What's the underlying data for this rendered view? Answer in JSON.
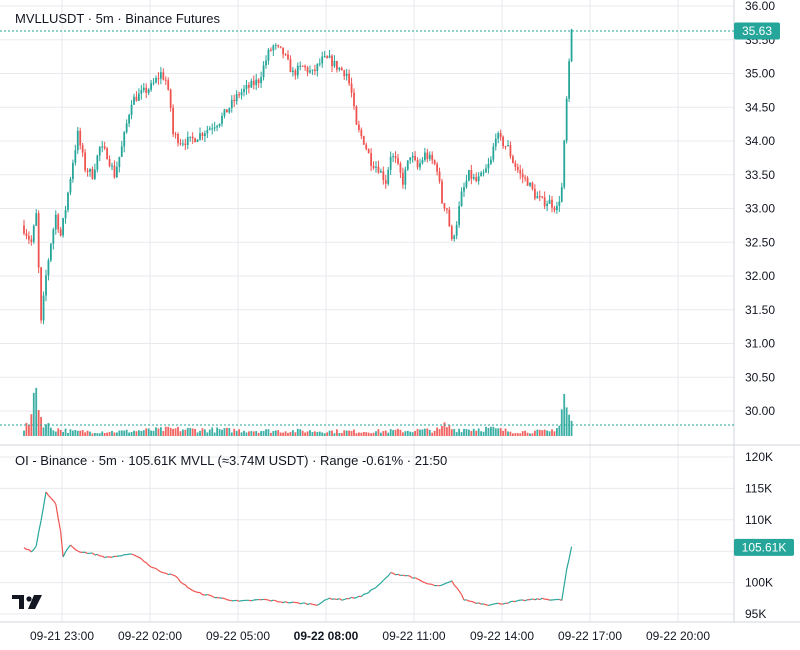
{
  "colors": {
    "up": "#26a69a",
    "down": "#ef5350",
    "grid": "#e8eaee",
    "tag": "#26a69a",
    "text": "#131722"
  },
  "logo": {
    "icon": "tradingview-logo-icon"
  },
  "chart_data": [
    {
      "type": "candlestick",
      "title": "MVLLUSDT · 5m · Binance Futures",
      "ylim": [
        30.0,
        36.0
      ],
      "yticks": [
        "36.00",
        "35.50",
        "35.00",
        "34.50",
        "34.00",
        "33.50",
        "33.00",
        "32.50",
        "32.00",
        "31.50",
        "31.00",
        "30.50",
        "30.00"
      ],
      "last_price": "35.63",
      "anchors": [
        [
          0,
          32.7
        ],
        [
          3,
          32.5
        ],
        [
          5,
          32.9
        ],
        [
          7,
          31.3
        ],
        [
          9,
          32.0
        ],
        [
          11,
          32.5
        ],
        [
          13,
          32.9
        ],
        [
          15,
          32.6
        ],
        [
          17,
          33.0
        ],
        [
          20,
          33.7
        ],
        [
          22,
          34.1
        ],
        [
          25,
          33.6
        ],
        [
          28,
          33.5
        ],
        [
          31,
          33.9
        ],
        [
          34,
          33.8
        ],
        [
          37,
          33.5
        ],
        [
          40,
          33.9
        ],
        [
          44,
          34.6
        ],
        [
          48,
          34.7
        ],
        [
          52,
          34.8
        ],
        [
          56,
          35.0
        ],
        [
          58,
          34.9
        ],
        [
          60,
          34.5
        ],
        [
          61,
          34.1
        ],
        [
          64,
          34.0
        ],
        [
          68,
          34.0
        ],
        [
          72,
          34.1
        ],
        [
          76,
          34.2
        ],
        [
          80,
          34.3
        ],
        [
          84,
          34.5
        ],
        [
          88,
          34.7
        ],
        [
          92,
          34.8
        ],
        [
          96,
          34.9
        ],
        [
          100,
          35.3
        ],
        [
          102,
          35.4
        ],
        [
          106,
          35.3
        ],
        [
          110,
          35.0
        ],
        [
          114,
          35.1
        ],
        [
          118,
          35.0
        ],
        [
          122,
          35.2
        ],
        [
          125,
          35.2
        ],
        [
          128,
          35.1
        ],
        [
          132,
          35.0
        ],
        [
          134,
          34.7
        ],
        [
          136,
          34.2
        ],
        [
          139,
          34.0
        ],
        [
          142,
          33.7
        ],
        [
          145,
          33.6
        ],
        [
          148,
          33.4
        ],
        [
          150,
          33.8
        ],
        [
          152,
          33.7
        ],
        [
          155,
          33.4
        ],
        [
          158,
          33.8
        ],
        [
          161,
          33.6
        ],
        [
          164,
          33.8
        ],
        [
          167,
          33.7
        ],
        [
          169,
          33.6
        ],
        [
          171,
          33.1
        ],
        [
          173,
          33.0
        ],
        [
          175,
          32.5
        ],
        [
          177,
          32.8
        ],
        [
          179,
          33.2
        ],
        [
          182,
          33.5
        ],
        [
          185,
          33.4
        ],
        [
          188,
          33.5
        ],
        [
          191,
          33.7
        ],
        [
          193,
          34.1
        ],
        [
          195,
          34.0
        ],
        [
          198,
          33.9
        ],
        [
          200,
          33.7
        ],
        [
          203,
          33.5
        ],
        [
          206,
          33.4
        ],
        [
          209,
          33.2
        ],
        [
          212,
          33.1
        ],
        [
          215,
          33.1
        ],
        [
          218,
          33.0
        ],
        [
          220,
          33.3
        ],
        [
          222,
          34.6
        ],
        [
          224,
          35.63
        ]
      ],
      "volume": [
        [
          0,
          0.1
        ],
        [
          3,
          0.2
        ],
        [
          4,
          0.55
        ],
        [
          5,
          0.95
        ],
        [
          6,
          0.35
        ],
        [
          7,
          0.25
        ],
        [
          9,
          0.15
        ],
        [
          12,
          0.1
        ],
        [
          20,
          0.06
        ],
        [
          40,
          0.06
        ],
        [
          60,
          0.09
        ],
        [
          100,
          0.07
        ],
        [
          140,
          0.06
        ],
        [
          170,
          0.08
        ],
        [
          172,
          0.14
        ],
        [
          176,
          0.09
        ],
        [
          190,
          0.1
        ],
        [
          200,
          0.06
        ],
        [
          215,
          0.06
        ],
        [
          219,
          0.14
        ],
        [
          221,
          0.55
        ],
        [
          222,
          0.35
        ],
        [
          223,
          0.25
        ],
        [
          224,
          0.2
        ]
      ]
    },
    {
      "type": "line",
      "title": "OI - Binance · 5m · 105.61K MVLL (≈3.74M USDT) · Range -0.61% · 21:50",
      "ylim": [
        95,
        120
      ],
      "yticks": [
        "120K",
        "115K",
        "110K",
        "105K",
        "100K",
        "95K"
      ],
      "last_value": "105.61K",
      "anchors": [
        [
          0,
          105.5
        ],
        [
          3,
          105.0
        ],
        [
          5,
          105.8
        ],
        [
          7,
          110.0
        ],
        [
          9,
          114.5
        ],
        [
          11,
          113.5
        ],
        [
          13,
          112.5
        ],
        [
          15,
          108.0
        ],
        [
          16,
          104.2
        ],
        [
          19,
          106.0
        ],
        [
          22,
          105.0
        ],
        [
          28,
          104.6
        ],
        [
          34,
          104.0
        ],
        [
          40,
          104.3
        ],
        [
          45,
          104.5
        ],
        [
          48,
          103.8
        ],
        [
          52,
          102.5
        ],
        [
          56,
          101.8
        ],
        [
          62,
          101.0
        ],
        [
          65,
          99.8
        ],
        [
          70,
          98.5
        ],
        [
          78,
          97.7
        ],
        [
          88,
          97.0
        ],
        [
          98,
          97.3
        ],
        [
          106,
          96.9
        ],
        [
          114,
          96.7
        ],
        [
          120,
          96.5
        ],
        [
          125,
          97.5
        ],
        [
          130,
          97.3
        ],
        [
          138,
          97.8
        ],
        [
          145,
          99.5
        ],
        [
          150,
          101.5
        ],
        [
          158,
          101.0
        ],
        [
          165,
          99.8
        ],
        [
          170,
          99.4
        ],
        [
          175,
          100.2
        ],
        [
          178,
          98.7
        ],
        [
          180,
          97.3
        ],
        [
          185,
          96.8
        ],
        [
          190,
          96.5
        ],
        [
          196,
          96.7
        ],
        [
          205,
          97.2
        ],
        [
          212,
          97.4
        ],
        [
          220,
          97.2
        ],
        [
          222,
          102.0
        ],
        [
          224,
          105.6
        ]
      ]
    }
  ],
  "x_axis": {
    "labels": [
      "09-21 23:00",
      "09-22 02:00",
      "09-22 05:00",
      "09-22 08:00",
      "09-22 11:00",
      "09-22 14:00",
      "09-22 17:00",
      "09-22 20:00"
    ],
    "bold_index": 3,
    "label_bar_index": [
      9,
      45,
      81,
      117,
      153,
      189,
      225,
      261
    ]
  }
}
